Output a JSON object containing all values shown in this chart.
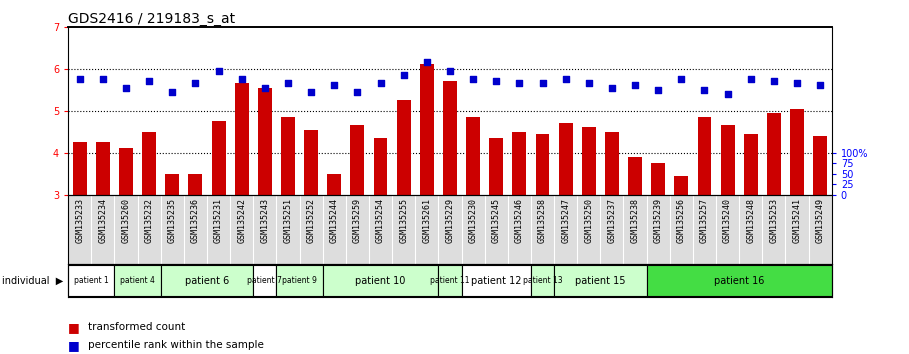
{
  "title": "GDS2416 / 219183_s_at",
  "samples": [
    "GSM135233",
    "GSM135234",
    "GSM135260",
    "GSM135232",
    "GSM135235",
    "GSM135236",
    "GSM135231",
    "GSM135242",
    "GSM135243",
    "GSM135251",
    "GSM135252",
    "GSM135244",
    "GSM135259",
    "GSM135254",
    "GSM135255",
    "GSM135261",
    "GSM135229",
    "GSM135230",
    "GSM135245",
    "GSM135246",
    "GSM135258",
    "GSM135247",
    "GSM135250",
    "GSM135237",
    "GSM135238",
    "GSM135239",
    "GSM135256",
    "GSM135257",
    "GSM135240",
    "GSM135248",
    "GSM135253",
    "GSM135241",
    "GSM135249"
  ],
  "bar_values": [
    4.25,
    4.25,
    4.1,
    4.5,
    3.5,
    3.5,
    4.75,
    5.65,
    5.55,
    4.85,
    4.55,
    3.5,
    4.65,
    4.35,
    5.25,
    6.1,
    5.7,
    4.85,
    4.35,
    4.5,
    4.45,
    4.7,
    4.6,
    4.5,
    3.9,
    3.75,
    3.45,
    4.85,
    4.65,
    4.45,
    4.95,
    5.05,
    4.4
  ],
  "percentile_values": [
    5.75,
    5.75,
    5.55,
    5.7,
    5.45,
    5.65,
    5.95,
    5.75,
    5.55,
    5.65,
    5.45,
    5.6,
    5.45,
    5.65,
    5.85,
    6.15,
    5.95,
    5.75,
    5.7,
    5.65,
    5.65,
    5.75,
    5.65,
    5.55,
    5.6,
    5.5,
    5.75,
    5.5,
    5.4,
    5.75,
    5.7,
    5.65,
    5.6
  ],
  "patient_groups": [
    {
      "label": "patient 1",
      "start": 0,
      "end": 2,
      "color": "#ffffff"
    },
    {
      "label": "patient 4",
      "start": 2,
      "end": 4,
      "color": "#ccffcc"
    },
    {
      "label": "patient 6",
      "start": 4,
      "end": 8,
      "color": "#ccffcc"
    },
    {
      "label": "patient 7",
      "start": 8,
      "end": 9,
      "color": "#ffffff"
    },
    {
      "label": "patient 9",
      "start": 9,
      "end": 11,
      "color": "#ccffcc"
    },
    {
      "label": "patient 10",
      "start": 11,
      "end": 16,
      "color": "#ccffcc"
    },
    {
      "label": "patient 11",
      "start": 16,
      "end": 17,
      "color": "#ccffcc"
    },
    {
      "label": "patient 12",
      "start": 17,
      "end": 20,
      "color": "#ffffff"
    },
    {
      "label": "patient 13",
      "start": 20,
      "end": 21,
      "color": "#ccffcc"
    },
    {
      "label": "patient 15",
      "start": 21,
      "end": 25,
      "color": "#ccffcc"
    },
    {
      "label": "patient 16",
      "start": 25,
      "end": 33,
      "color": "#44dd44"
    }
  ],
  "ylim": [
    3,
    7
  ],
  "yticks_left": [
    3,
    4,
    5,
    6,
    7
  ],
  "yticks_right_vals": [
    3.0,
    3.25,
    3.5,
    3.75,
    4.0
  ],
  "yticks_right_labels": [
    "0",
    "25",
    "50",
    "75",
    "100%"
  ],
  "bar_color": "#cc0000",
  "dot_color": "#0000cc",
  "title_fontsize": 10,
  "axis_fontsize": 7,
  "label_fontsize": 6
}
